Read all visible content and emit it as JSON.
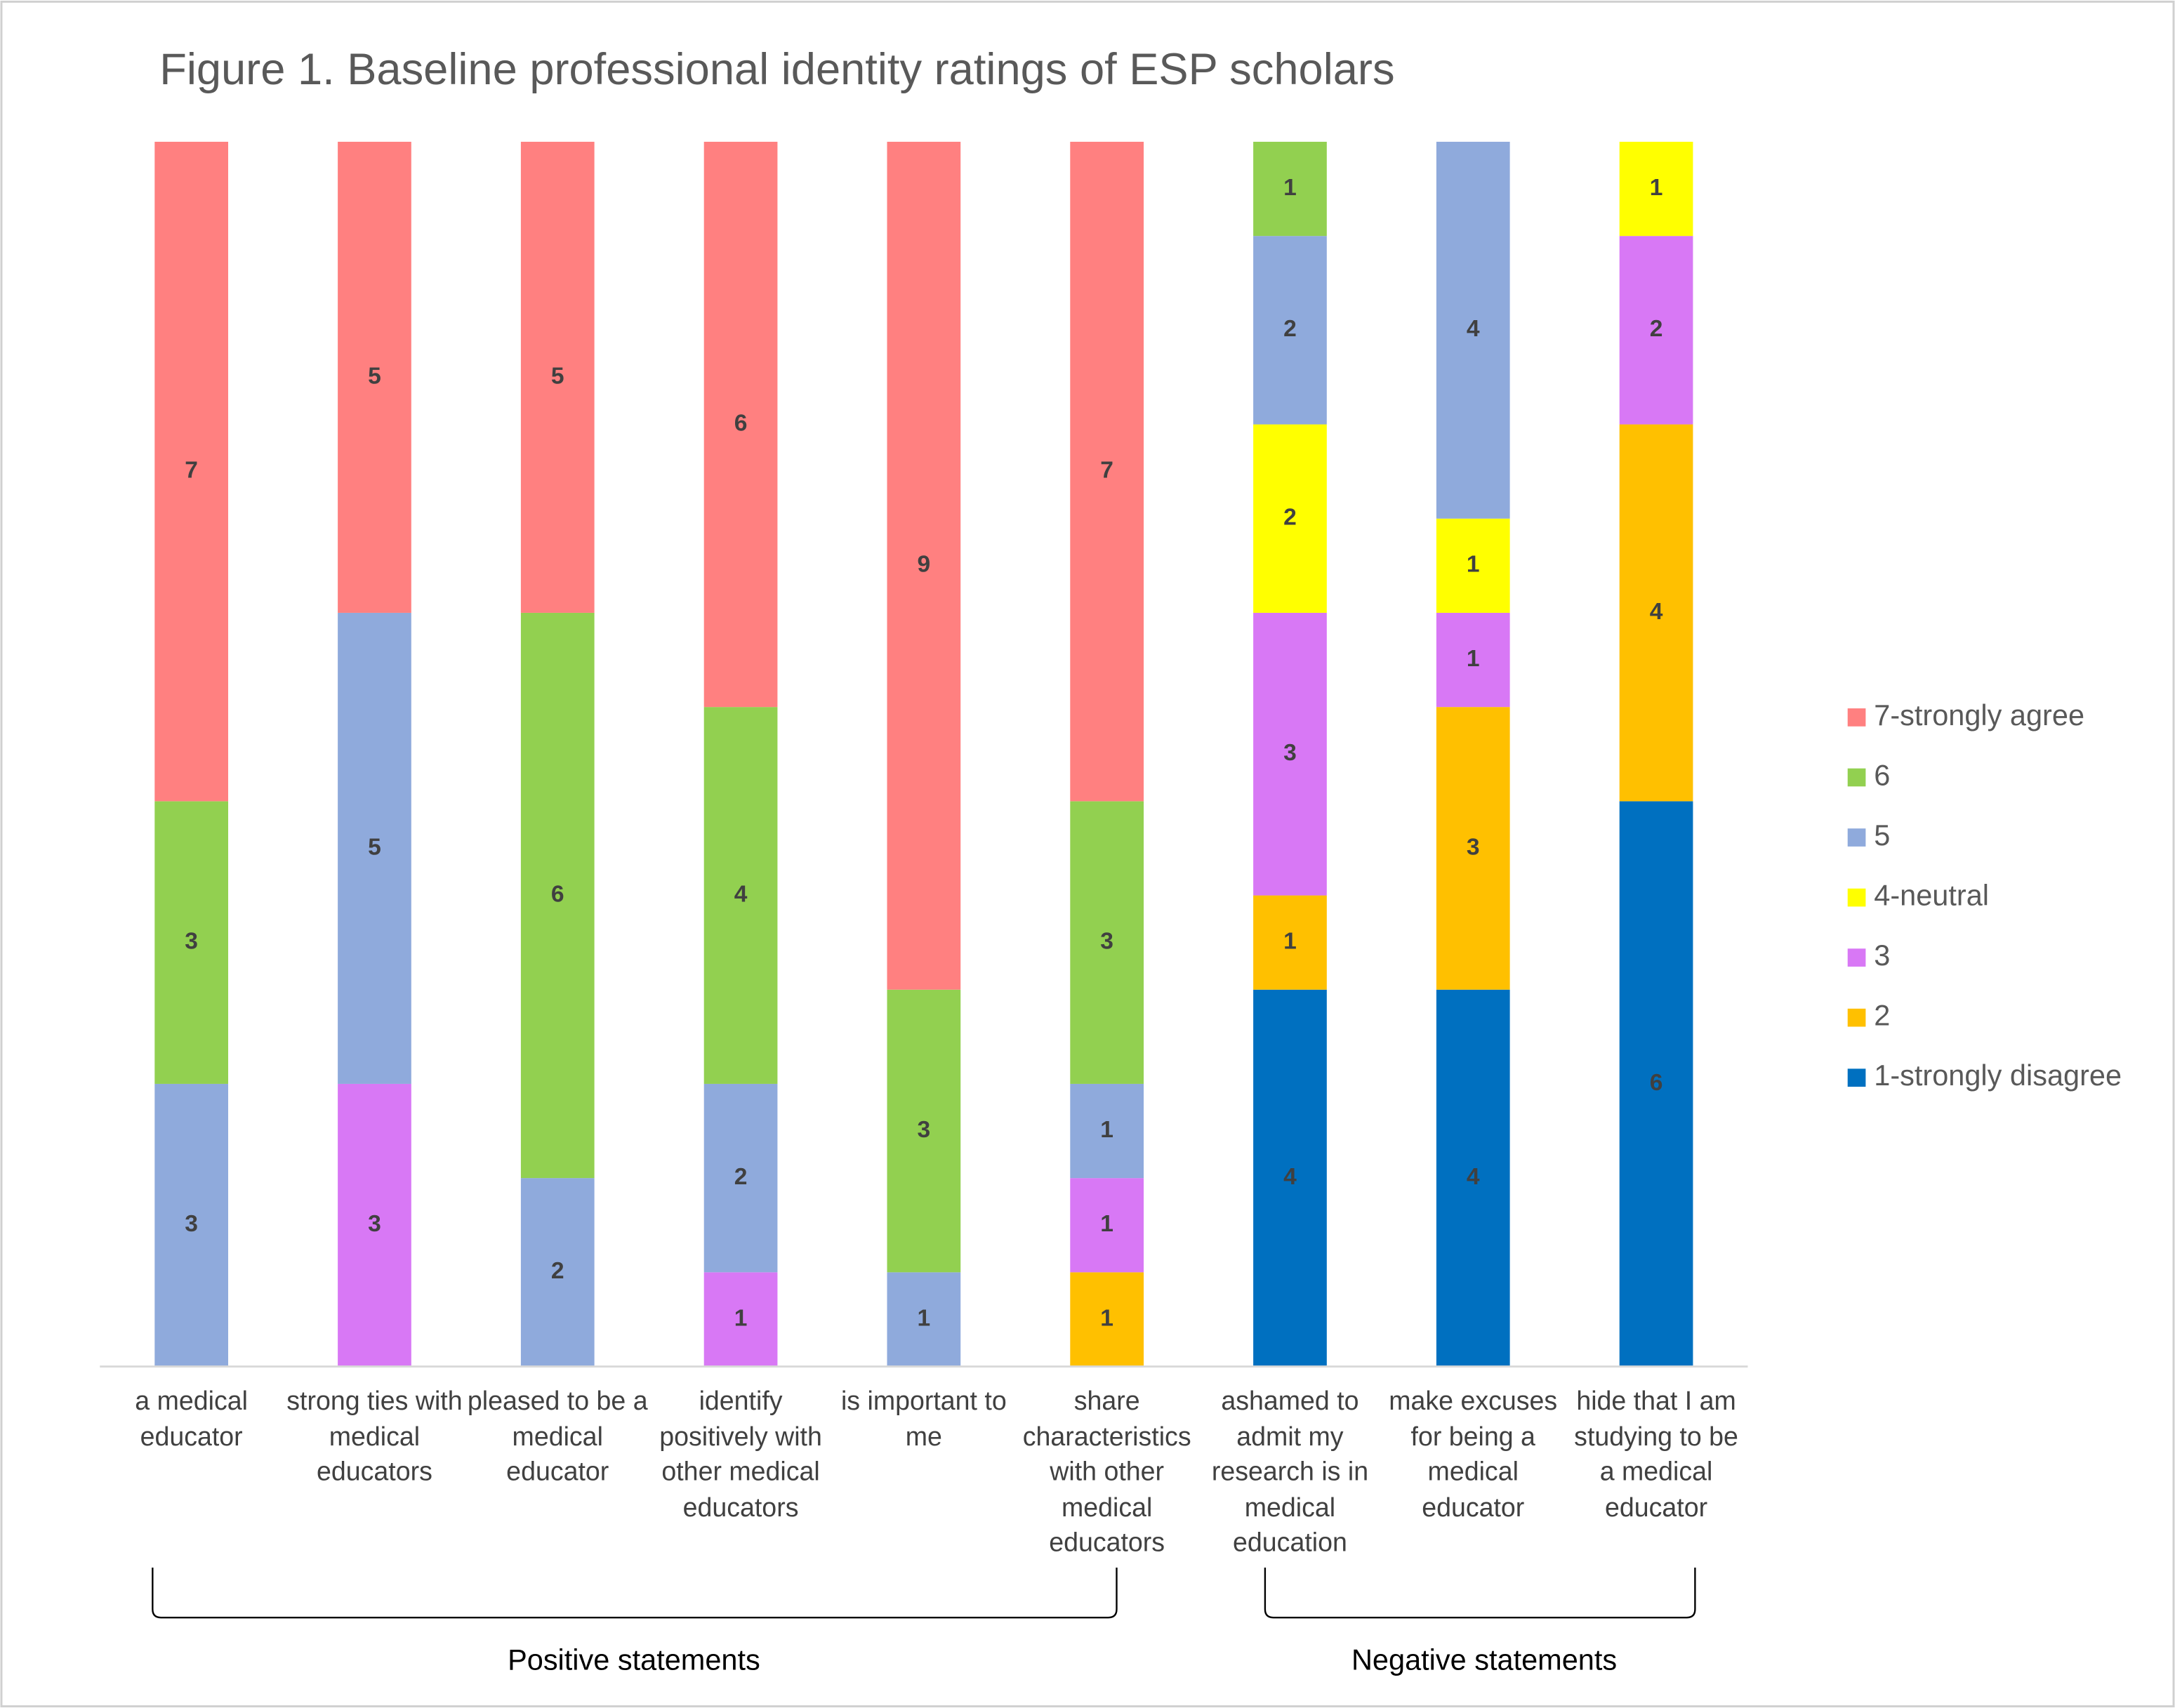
{
  "chart_data": {
    "type": "stacked_bar",
    "title": "Figure 1. Baseline professional identity ratings of ESP scholars",
    "categories": [
      "a medical educator",
      "strong ties with medical educators",
      "pleased to be a medical educator",
      "identify positively with other medical educators",
      "is important to me",
      "share characteristics with other medical educators",
      "ashamed to admit my research is in medical education",
      "make excuses for being a medical educator",
      "hide that I am studying to be a medical educator"
    ],
    "series": [
      {
        "name": "1-strongly disagree",
        "color": "#0070c0",
        "values": [
          null,
          null,
          null,
          null,
          null,
          null,
          4,
          4,
          6
        ]
      },
      {
        "name": "2",
        "color": "#ffc000",
        "values": [
          null,
          null,
          null,
          null,
          null,
          1,
          1,
          3,
          4
        ]
      },
      {
        "name": "3",
        "color": "#d878f5",
        "values": [
          null,
          3,
          null,
          1,
          null,
          1,
          3,
          1,
          2
        ]
      },
      {
        "name": "4-neutral",
        "color": "#ffff00",
        "values": [
          null,
          null,
          null,
          null,
          null,
          null,
          2,
          1,
          1
        ]
      },
      {
        "name": "5",
        "color": "#8faadc",
        "values": [
          3,
          5,
          2,
          2,
          1,
          1,
          2,
          4,
          null
        ]
      },
      {
        "name": "6",
        "color": "#92d050",
        "values": [
          3,
          null,
          6,
          4,
          3,
          3,
          1,
          null,
          null
        ]
      },
      {
        "name": "7-strongly agree",
        "color": "#ff8080",
        "values": [
          7,
          5,
          5,
          6,
          9,
          7,
          null,
          null,
          null
        ]
      }
    ],
    "annotations": [
      "Positive statements",
      "Negative statements"
    ],
    "legend": "right"
  }
}
